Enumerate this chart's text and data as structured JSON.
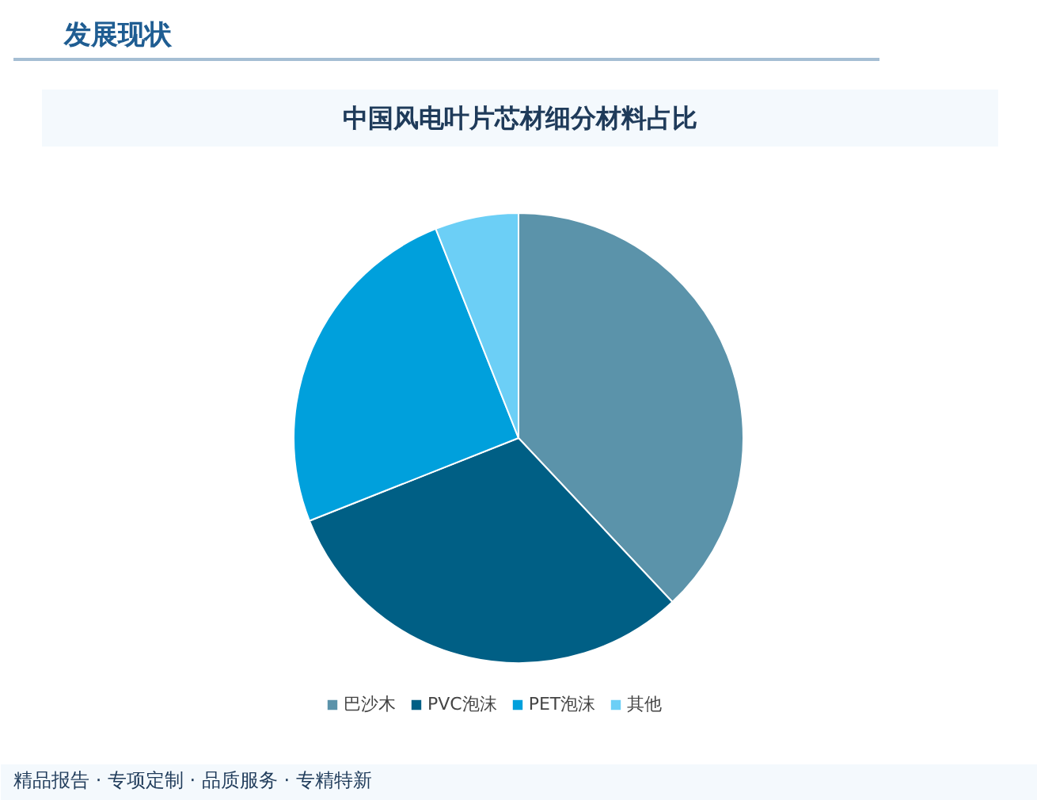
{
  "chart_data": {
    "type": "pie",
    "title": "中国风电叶片芯材细分材料占比",
    "subtitle": "发展现状",
    "categories": [
      "巴沙木",
      "PVC泡沫",
      "PET泡沫",
      "其他"
    ],
    "values": [
      38,
      31,
      25,
      6
    ],
    "colors": [
      "#5b93aa",
      "#005f85",
      "#00a0dc",
      "#6ccff6"
    ],
    "legend": "bottom",
    "annotations": [
      "精品报告 · 专项定制 · 品质服务 · 专精特新"
    ]
  }
}
